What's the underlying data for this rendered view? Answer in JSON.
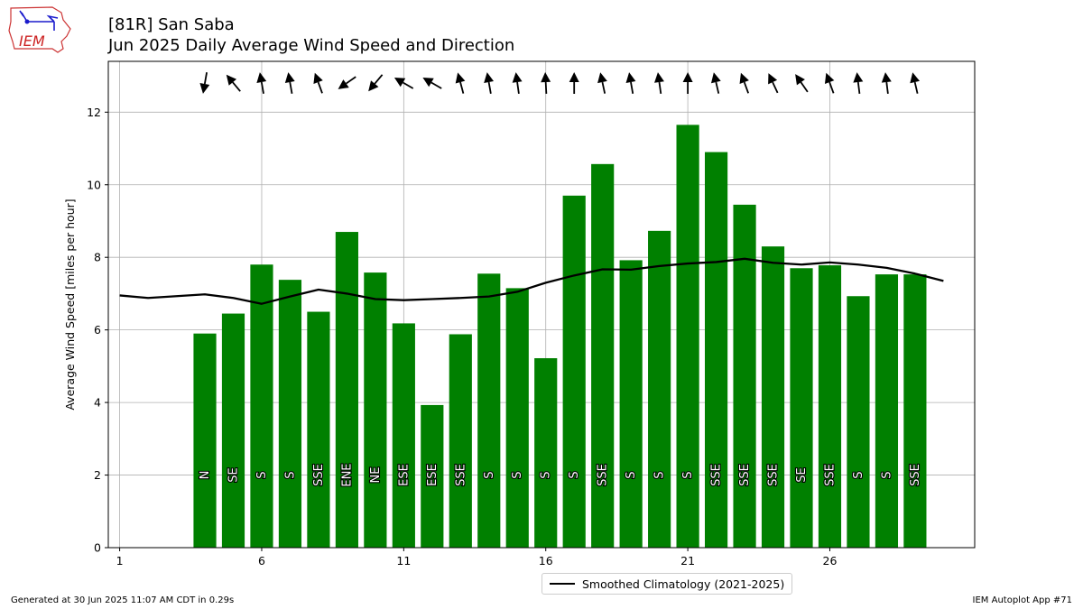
{
  "logo_text": "IEM",
  "title_line1": "[81R] San Saba",
  "title_line2": "Jun 2025 Daily Average Wind Speed and Direction",
  "footer_left": "Generated at 30 Jun 2025 11:07 AM CDT in 0.29s",
  "footer_right": "IEM Autoplot App #71",
  "colors": {
    "bar": "#008000",
    "climatology": "#000000",
    "grid": "#b0b0b0"
  },
  "chart_data": {
    "type": "bar",
    "title": "[81R] San Saba Jun 2025 Daily Average Wind Speed and Direction",
    "xlabel": "",
    "ylabel": "Average Wind Speed [miles per hour]",
    "xlim": [
      0.6,
      31.1
    ],
    "ylim": [
      0,
      13.4
    ],
    "xticks": [
      1,
      6,
      11,
      16,
      21,
      26
    ],
    "yticks": [
      0,
      2,
      4,
      6,
      8,
      10,
      12
    ],
    "grid": true,
    "legend_placement": "bottom-center",
    "bars": [
      {
        "day": 4,
        "speed": 5.9,
        "dir": "N",
        "deg": 10
      },
      {
        "day": 5,
        "speed": 6.45,
        "dir": "SE",
        "deg": 140
      },
      {
        "day": 6,
        "speed": 7.8,
        "dir": "S",
        "deg": 170
      },
      {
        "day": 7,
        "speed": 7.38,
        "dir": "S",
        "deg": 170
      },
      {
        "day": 8,
        "speed": 6.5,
        "dir": "SSE",
        "deg": 160
      },
      {
        "day": 9,
        "speed": 8.7,
        "dir": "ENE",
        "deg": 55
      },
      {
        "day": 10,
        "speed": 7.58,
        "dir": "NE",
        "deg": 40
      },
      {
        "day": 11,
        "speed": 6.18,
        "dir": "ESE",
        "deg": 120
      },
      {
        "day": 12,
        "speed": 3.93,
        "dir": "ESE",
        "deg": 120
      },
      {
        "day": 13,
        "speed": 5.88,
        "dir": "SSE",
        "deg": 165
      },
      {
        "day": 14,
        "speed": 7.55,
        "dir": "S",
        "deg": 170
      },
      {
        "day": 15,
        "speed": 7.15,
        "dir": "S",
        "deg": 172
      },
      {
        "day": 16,
        "speed": 5.22,
        "dir": "S",
        "deg": 177
      },
      {
        "day": 17,
        "speed": 9.7,
        "dir": "S",
        "deg": 180
      },
      {
        "day": 18,
        "speed": 10.57,
        "dir": "SSE",
        "deg": 168
      },
      {
        "day": 19,
        "speed": 7.92,
        "dir": "S",
        "deg": 170
      },
      {
        "day": 20,
        "speed": 8.73,
        "dir": "S",
        "deg": 172
      },
      {
        "day": 21,
        "speed": 11.65,
        "dir": "S",
        "deg": 180
      },
      {
        "day": 22,
        "speed": 10.9,
        "dir": "SSE",
        "deg": 167
      },
      {
        "day": 23,
        "speed": 9.45,
        "dir": "SSE",
        "deg": 160
      },
      {
        "day": 24,
        "speed": 8.3,
        "dir": "SSE",
        "deg": 155
      },
      {
        "day": 25,
        "speed": 7.7,
        "dir": "SE",
        "deg": 145
      },
      {
        "day": 26,
        "speed": 7.78,
        "dir": "SSE",
        "deg": 160
      },
      {
        "day": 27,
        "speed": 6.93,
        "dir": "S",
        "deg": 173
      },
      {
        "day": 28,
        "speed": 7.53,
        "dir": "S",
        "deg": 173
      },
      {
        "day": 29,
        "speed": 7.53,
        "dir": "SSE",
        "deg": 167
      }
    ],
    "climatology": {
      "name": "Smoothed Climatology (2021-2025)",
      "x": [
        1,
        2,
        3,
        4,
        5,
        6,
        7,
        8,
        9,
        10,
        11,
        12,
        13,
        14,
        15,
        16,
        17,
        18,
        19,
        20,
        21,
        22,
        23,
        24,
        25,
        26,
        27,
        28,
        29,
        30
      ],
      "y": [
        6.95,
        6.88,
        6.93,
        6.98,
        6.88,
        6.72,
        6.92,
        7.11,
        7.0,
        6.85,
        6.82,
        6.85,
        6.88,
        6.92,
        7.05,
        7.3,
        7.5,
        7.67,
        7.66,
        7.76,
        7.83,
        7.87,
        7.96,
        7.85,
        7.8,
        7.86,
        7.8,
        7.71,
        7.55,
        7.35
      ]
    }
  }
}
